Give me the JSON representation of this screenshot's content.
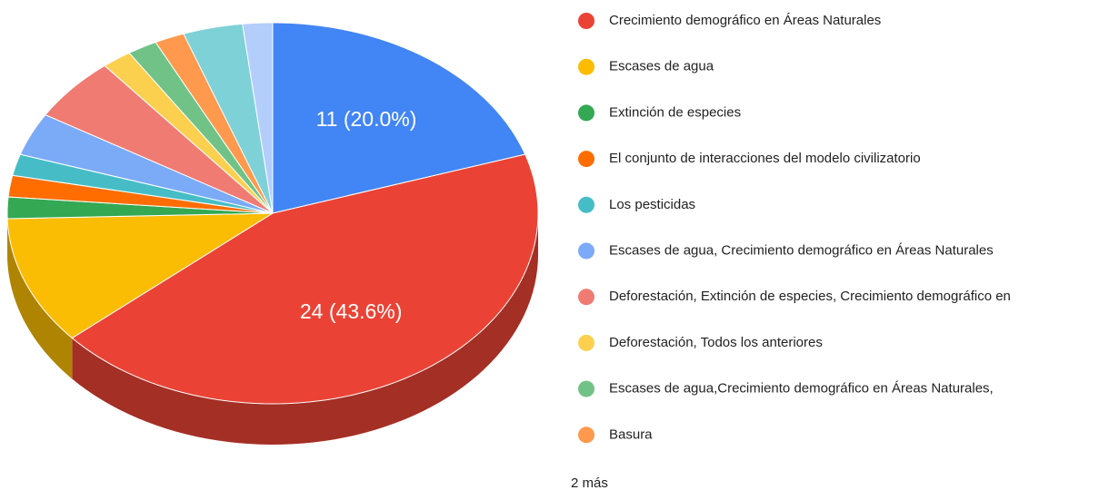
{
  "chart_data": {
    "type": "pie3d",
    "categories": [
      null,
      "Crecimiento demográfico en Áreas Naturales",
      "Escases de agua",
      "Extinción de especies",
      "El conjunto de interacciones del modelo civilizatorio",
      "Los pesticidas",
      "Escases de agua, Crecimiento demográfico en Áreas Naturales",
      "Deforestación, Extinción de especies, Crecimiento demográfico en",
      "Deforestación, Todos los anteriores",
      "Escases de agua,Crecimiento demográfico en Áreas Naturales,",
      "Basura",
      null,
      null
    ],
    "values": [
      11,
      24,
      6,
      1,
      1,
      1,
      2,
      3,
      1,
      1,
      1,
      2,
      1
    ],
    "value_labels": [
      "11 (20.0%)",
      "24 (43.6%)",
      null,
      null,
      null,
      null,
      null,
      null,
      null,
      null,
      null,
      null,
      null
    ],
    "colors": [
      "#4285f4",
      "#ea4335",
      "#fbbc04",
      "#34a853",
      "#ff6d01",
      "#46bdc6",
      "#7baaf7",
      "#f07b72",
      "#fcd04f",
      "#71c287",
      "#ff994d",
      "#7ed1d7",
      "#b3cefb"
    ],
    "legend_more": "2 más"
  }
}
